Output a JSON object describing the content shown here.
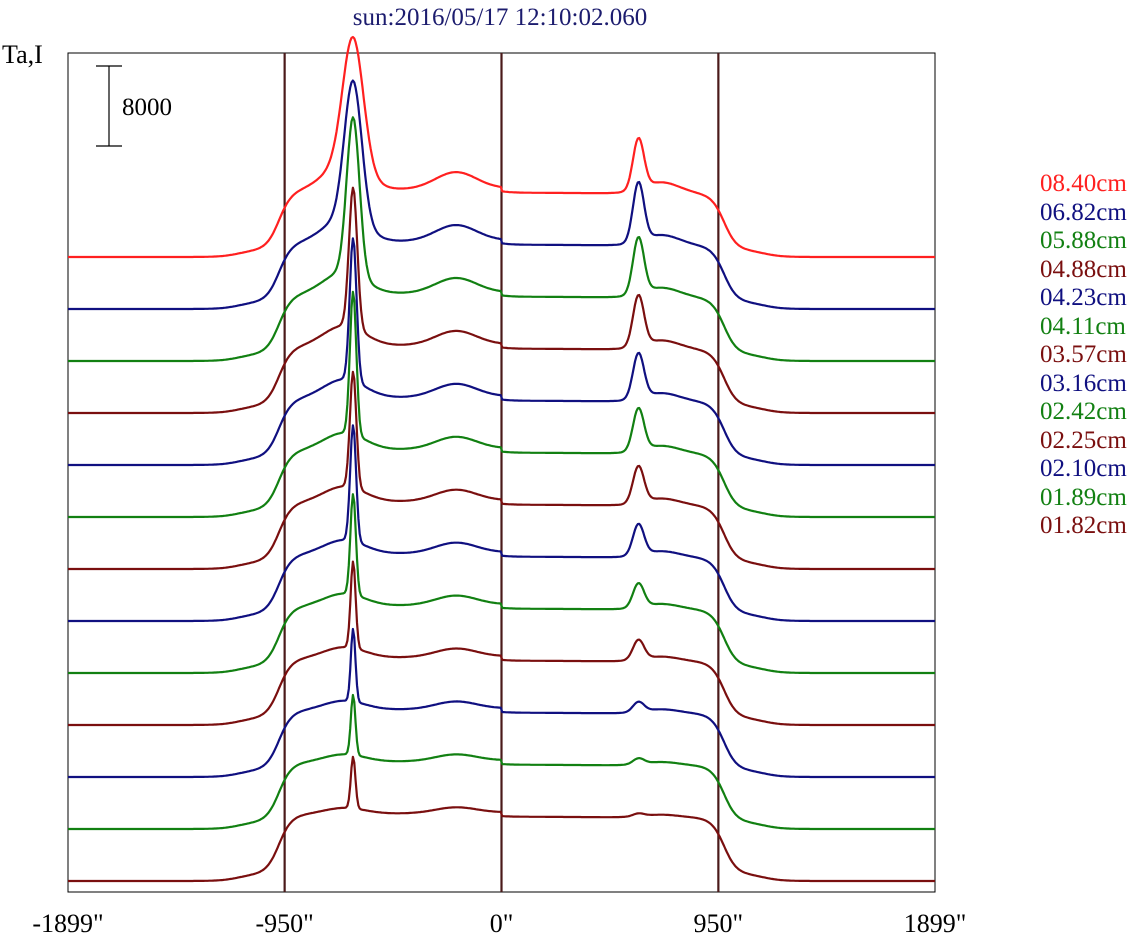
{
  "chart_data": {
    "type": "line",
    "title": "sun:2016/05/17 12:10:02.060",
    "ylabel": "Ta,I",
    "scale_bar": {
      "label": "8000",
      "value": 8000
    },
    "xlim": [
      -1899,
      1899
    ],
    "xticks": [
      {
        "value": -1899,
        "label": "-1899\""
      },
      {
        "value": -950,
        "label": "-950\""
      },
      {
        "value": 0,
        "label": "0\""
      },
      {
        "value": 950,
        "label": "950\""
      },
      {
        "value": 1899,
        "label": "1899\""
      }
    ],
    "vlines": [
      -950,
      0,
      950
    ],
    "vline_color": "#4a1a1a",
    "legend_position": "right",
    "series": [
      {
        "name": "08.40cm",
        "color": "#ff2020"
      },
      {
        "name": "06.82cm",
        "color": "#101080"
      },
      {
        "name": "05.88cm",
        "color": "#128012"
      },
      {
        "name": "04.88cm",
        "color": "#7a0f0f"
      },
      {
        "name": "04.23cm",
        "color": "#101080"
      },
      {
        "name": "04.11cm",
        "color": "#128012"
      },
      {
        "name": "03.57cm",
        "color": "#7a0f0f"
      },
      {
        "name": "03.16cm",
        "color": "#101080"
      },
      {
        "name": "02.42cm",
        "color": "#128012"
      },
      {
        "name": "02.25cm",
        "color": "#7a0f0f"
      },
      {
        "name": "02.10cm",
        "color": "#101080"
      },
      {
        "name": "01.89cm",
        "color": "#128012"
      },
      {
        "name": "01.82cm",
        "color": "#7a0f0f"
      }
    ]
  }
}
